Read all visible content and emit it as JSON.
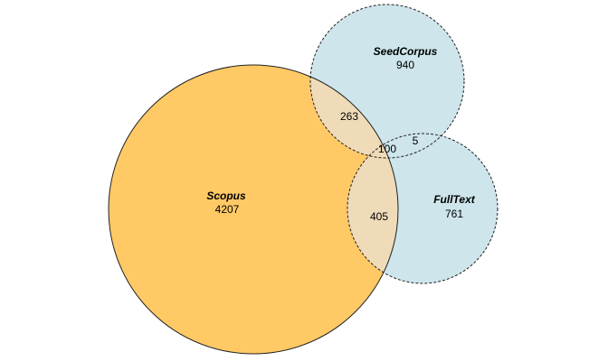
{
  "sets": {
    "scopus": {
      "name": "Scopus",
      "count": "4207",
      "color": "#ffc966"
    },
    "seedcorpus": {
      "name": "SeedCorpus",
      "count": "940",
      "color": "#cde5eb"
    },
    "fulltext": {
      "name": "FullText",
      "count": "761",
      "color": "#cde5eb"
    }
  },
  "overlaps": {
    "scopus_seedcorpus": "263",
    "seedcorpus_fulltext": "5",
    "all_three": "100",
    "scopus_fulltext": "405"
  },
  "colors": {
    "scopus_fill": "#ffc966",
    "side_fill": "#cde5eb",
    "overlap_fill": "#f0dbb9",
    "stroke": "#222222"
  }
}
